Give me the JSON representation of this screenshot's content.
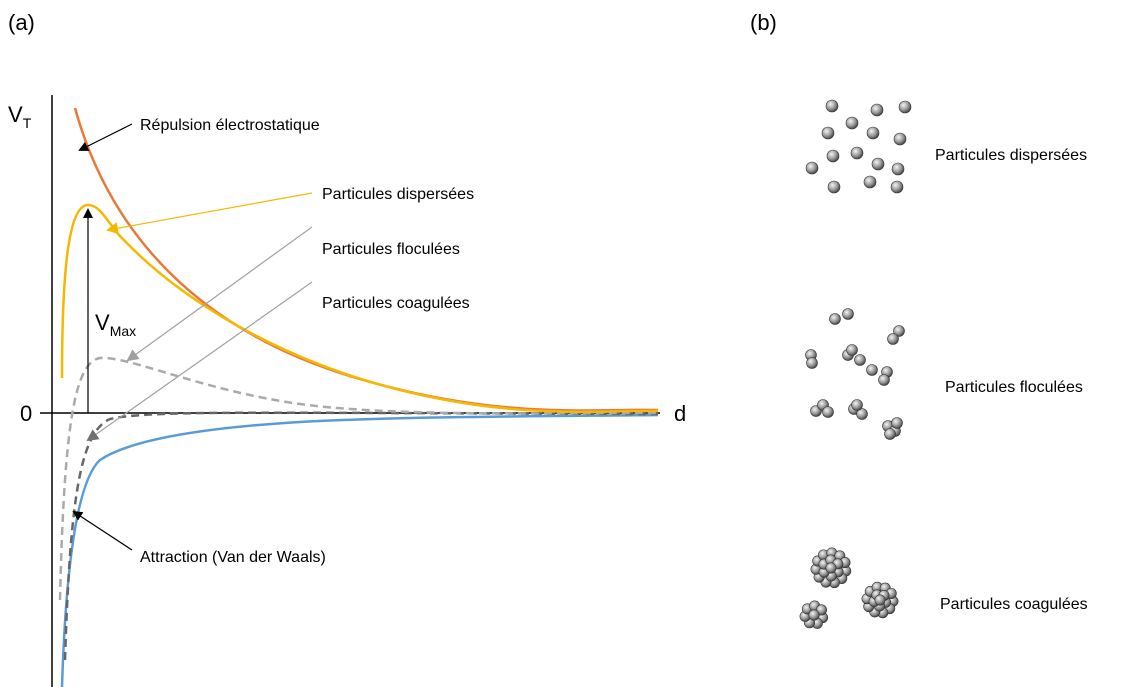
{
  "panel_a": {
    "label": "(a)",
    "y_axis": {
      "symbol": "V",
      "subscript": "T"
    },
    "origin": "0",
    "x_axis": "d",
    "repulsion": "Répulsion électrostatique",
    "dispersed": "Particules dispersées",
    "flocculated": "Particules floculées",
    "coagulated": "Particules coagulées",
    "vmax": {
      "symbol": "V",
      "subscript": "Max"
    },
    "attraction": "Attraction (Van der Waals)"
  },
  "panel_b": {
    "label": "(b)",
    "dispersed": "Particules dispersées",
    "flocculated": "Particules floculées",
    "coagulated": "Particules coagulées"
  }
}
